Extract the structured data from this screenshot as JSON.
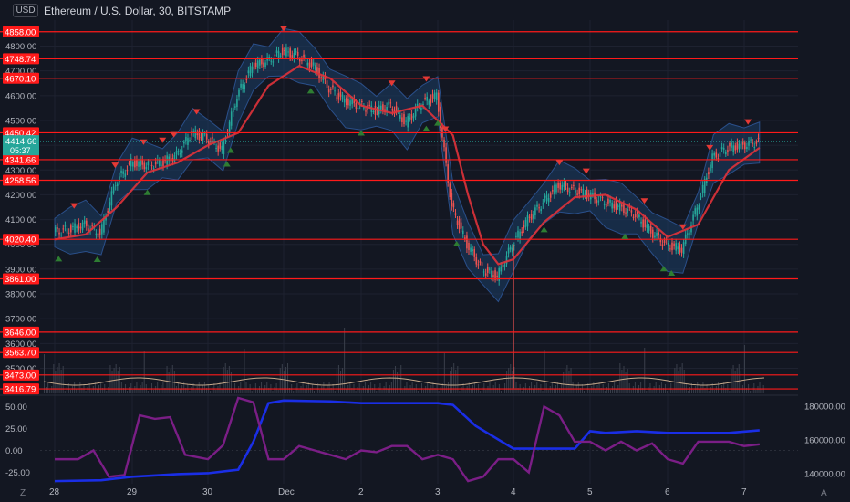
{
  "header": {
    "title": "Ethereum / U.S. Dollar, 30, BITSTAMP",
    "currency_label": "USD"
  },
  "corner": {
    "left": "Z",
    "right": "A"
  },
  "colors": {
    "background": "#131722",
    "support_line": "#ff1a1a",
    "up_candle": "#26a69a",
    "down_candle": "#ef5350",
    "ema": "#e0323a",
    "band_fill": "#1c3e66",
    "band_edge": "#2a4f8a",
    "signal_down": "#e53935",
    "signal_up": "#2e7d32",
    "osc_blue": "#1a2ee6",
    "osc_purple": "#7b1e86",
    "current_price": "#26a69a"
  },
  "chart_data": [
    {
      "type": "line",
      "title": "Ethereum / U.S. Dollar, 30, BITSTAMP",
      "x_tick_labels": [
        "28",
        "29",
        "30",
        "Dec",
        "2",
        "3",
        "4",
        "5",
        "6",
        "7"
      ],
      "y_tick_labels": [
        "4800.00",
        "4700.00",
        "4600.00",
        "4500.00",
        "4400.00",
        "4300.00",
        "4200.00",
        "4100.00",
        "4000.00",
        "3900.00",
        "3800.00",
        "3700.00",
        "3600.00",
        "3500.00"
      ],
      "ylim": [
        3395,
        4905
      ],
      "horizontal_levels": [
        4858.0,
        4748.74,
        4670.1,
        4450.42,
        4341.66,
        4258.56,
        4020.4,
        3861.0,
        3646.0,
        3563.7,
        3473.0,
        3416.79
      ],
      "horizontal_level_labels": [
        "4858.00",
        "4748.74",
        "4670.10",
        "4450.42",
        "4341.66",
        "4258.56",
        "4020.40",
        "3861.00",
        "3646.00",
        "3563.70",
        "3473.00",
        "3416.79"
      ],
      "current_price": {
        "value": 4414.66,
        "label": "4414.66",
        "countdown": "05:37"
      },
      "price_series": {
        "x": [
          28.0,
          28.2,
          28.4,
          28.6,
          28.8,
          29.0,
          29.2,
          29.4,
          29.6,
          29.8,
          30.0,
          30.2,
          30.4,
          30.6,
          30.8,
          31.0,
          31.2,
          31.4,
          31.6,
          31.8,
          32.0,
          32.2,
          32.4,
          32.6,
          32.8,
          33.0,
          33.2,
          33.4,
          33.6,
          33.8,
          34.0,
          34.2,
          34.4,
          34.6,
          34.8,
          35.0,
          35.2,
          35.4,
          35.6,
          35.8,
          36.0,
          36.2,
          36.4,
          36.6,
          36.8,
          37.0,
          37.2
        ],
        "y": [
          4050,
          4060,
          4080,
          4040,
          4250,
          4330,
          4320,
          4330,
          4360,
          4450,
          4430,
          4380,
          4600,
          4720,
          4740,
          4780,
          4760,
          4720,
          4630,
          4580,
          4560,
          4540,
          4560,
          4490,
          4570,
          4600,
          4150,
          4000,
          3900,
          3870,
          4000,
          4100,
          4170,
          4240,
          4220,
          4200,
          4170,
          4150,
          4120,
          4050,
          4000,
          3980,
          4150,
          4350,
          4390,
          4400,
          4414.66
        ]
      },
      "ema_series": {
        "x": [
          28.0,
          28.4,
          28.8,
          29.2,
          29.6,
          30.0,
          30.4,
          30.8,
          31.2,
          31.6,
          32.0,
          32.4,
          32.8,
          33.2,
          33.4,
          33.6,
          33.8,
          34.0,
          34.4,
          34.8,
          35.2,
          35.6,
          36.0,
          36.4,
          36.8,
          37.2
        ],
        "y": [
          4020,
          4040,
          4150,
          4290,
          4330,
          4400,
          4450,
          4640,
          4720,
          4670,
          4560,
          4530,
          4560,
          4440,
          4200,
          4000,
          3920,
          3940,
          4090,
          4190,
          4200,
          4140,
          4030,
          4080,
          4300,
          4390
        ]
      },
      "signals": {
        "down_x": [
          28.25,
          28.78,
          29.15,
          29.4,
          29.55,
          29.85,
          31.0,
          32.4,
          32.85,
          33.1,
          34.6,
          34.95,
          35.7,
          36.2,
          36.55,
          37.05
        ],
        "up_x": [
          28.05,
          28.55,
          29.2,
          30.25,
          30.3,
          31.35,
          32.0,
          32.85,
          33.0,
          33.25,
          34.4,
          35.45,
          35.95,
          36.05
        ]
      }
    },
    {
      "type": "line",
      "y_tick_labels": [
        "50.00",
        "25.00",
        "0.00",
        "-25.00"
      ],
      "ylim": [
        -38,
        62
      ],
      "right_tick_labels": [
        "180000.00",
        "160000.00",
        "140000.00"
      ],
      "right_ylim": [
        134000,
        186000
      ],
      "series": [
        {
          "x": [
            28.0,
            28.6,
            29.0,
            29.6,
            30.0,
            30.4,
            30.6,
            30.8,
            31.0,
            31.6,
            32.0,
            32.4,
            32.8,
            33.0,
            33.2,
            33.5,
            34.0,
            34.4,
            34.8,
            35.0,
            35.2,
            35.6,
            36.0,
            36.4,
            36.8,
            37.2
          ],
          "y": [
            -35,
            -34,
            -30,
            -27,
            -26,
            -22,
            10,
            54,
            57,
            56,
            54,
            54,
            54,
            54,
            52,
            28,
            2,
            2,
            2,
            22,
            20,
            22,
            20,
            20,
            20,
            23
          ]
        },
        {
          "x": [
            28.0,
            28.3,
            28.5,
            28.7,
            28.9,
            29.1,
            29.3,
            29.5,
            29.7,
            30.0,
            30.2,
            30.4,
            30.6,
            30.8,
            31.0,
            31.2,
            31.4,
            31.6,
            31.8,
            32.0,
            32.2,
            32.4,
            32.6,
            32.8,
            33.0,
            33.2,
            33.4,
            33.6,
            33.8,
            34.0,
            34.2,
            34.4,
            34.6,
            34.8,
            35.0,
            35.2,
            35.4,
            35.6,
            35.8,
            36.0,
            36.2,
            36.4,
            36.6,
            36.8,
            37.0,
            37.2
          ],
          "y": [
            -10,
            -10,
            0,
            -30,
            -28,
            40,
            36,
            38,
            -5,
            -10,
            6,
            60,
            55,
            -10,
            -10,
            5,
            0,
            -5,
            -10,
            0,
            -2,
            5,
            5,
            -10,
            -5,
            -10,
            -35,
            -30,
            -10,
            -10,
            -25,
            50,
            40,
            10,
            10,
            0,
            10,
            0,
            8,
            -10,
            -15,
            10,
            10,
            10,
            5,
            7
          ]
        }
      ]
    }
  ]
}
